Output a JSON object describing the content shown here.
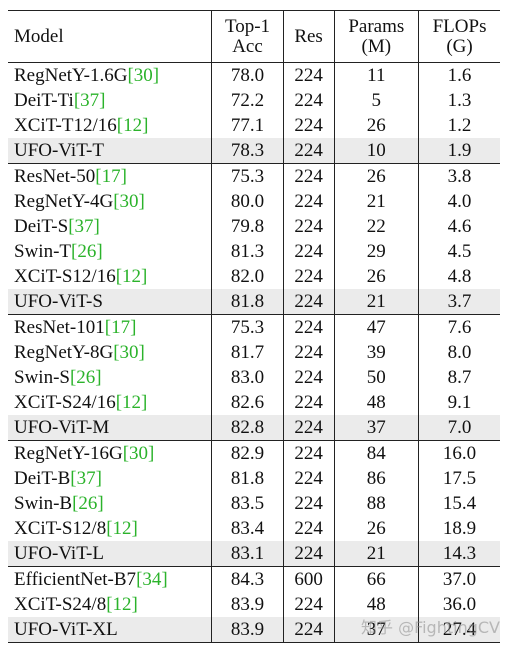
{
  "table": {
    "header": [
      [
        "Model"
      ],
      [
        "Top-1",
        "Acc"
      ],
      [
        "Res"
      ],
      [
        "Params",
        "(M)"
      ],
      [
        "FLOPs",
        "(G)"
      ]
    ],
    "groups": [
      [
        {
          "model": "RegNetY-1.6G",
          "ref": "[30]",
          "cells": [
            "78.0",
            "224",
            "11",
            "1.6"
          ]
        },
        {
          "model": "DeiT-Ti",
          "ref": "[37]",
          "cells": [
            "72.2",
            "224",
            "5",
            "1.3"
          ]
        },
        {
          "model": "XCiT-T12/16",
          "ref": "[12]",
          "cells": [
            "77.1",
            "224",
            "26",
            "1.2"
          ]
        },
        {
          "model": "UFO-ViT-T",
          "cells": [
            "78.3",
            "224",
            "10",
            "1.9"
          ]
        }
      ],
      [
        {
          "model": "ResNet-50",
          "ref": "[17]",
          "cells": [
            "75.3",
            "224",
            "26",
            "3.8"
          ]
        },
        {
          "model": "RegNetY-4G",
          "ref": "[30]",
          "cells": [
            "80.0",
            "224",
            "21",
            "4.0"
          ]
        },
        {
          "model": "DeiT-S",
          "ref": "[37]",
          "cells": [
            "79.8",
            "224",
            "22",
            "4.6"
          ]
        },
        {
          "model": "Swin-T",
          "ref": "[26]",
          "cells": [
            "81.3",
            "224",
            "29",
            "4.5"
          ]
        },
        {
          "model": "XCiT-S12/16",
          "ref": "[12]",
          "cells": [
            "82.0",
            "224",
            "26",
            "4.8"
          ]
        },
        {
          "model": "UFO-ViT-S",
          "cells": [
            "81.8",
            "224",
            "21",
            "3.7"
          ]
        }
      ],
      [
        {
          "model": "ResNet-101",
          "ref": "[17]",
          "cells": [
            "75.3",
            "224",
            "47",
            "7.6"
          ]
        },
        {
          "model": "RegNetY-8G",
          "ref": "[30]",
          "cells": [
            "81.7",
            "224",
            "39",
            "8.0"
          ]
        },
        {
          "model": "Swin-S",
          "ref": "[26]",
          "cells": [
            "83.0",
            "224",
            "50",
            "8.7"
          ]
        },
        {
          "model": "XCiT-S24/16",
          "ref": "[12]",
          "cells": [
            "82.6",
            "224",
            "48",
            "9.1"
          ]
        },
        {
          "model": "UFO-ViT-M",
          "cells": [
            "82.8",
            "224",
            "37",
            "7.0"
          ]
        }
      ],
      [
        {
          "model": "RegNetY-16G",
          "ref": "[30]",
          "cells": [
            "82.9",
            "224",
            "84",
            "16.0"
          ]
        },
        {
          "model": "DeiT-B",
          "ref": "[37]",
          "cells": [
            "81.8",
            "224",
            "86",
            "17.5"
          ]
        },
        {
          "model": "Swin-B",
          "ref": "[26]",
          "cells": [
            "83.5",
            "224",
            "88",
            "15.4"
          ]
        },
        {
          "model": "XCiT-S12/8",
          "ref": "[12]",
          "cells": [
            "83.4",
            "224",
            "26",
            "18.9"
          ]
        },
        {
          "model": "UFO-ViT-L",
          "cells": [
            "83.1",
            "224",
            "21",
            "14.3"
          ]
        }
      ],
      [
        {
          "model": "EfficientNet-B7",
          "ref": "[34]",
          "cells": [
            "84.3",
            "600",
            "66",
            "37.0"
          ]
        },
        {
          "model": "XCiT-S24/8",
          "ref": "[12]",
          "cells": [
            "83.9",
            "224",
            "48",
            "36.0"
          ]
        },
        {
          "model": "UFO-ViT-XL",
          "cells": [
            "83.9",
            "224",
            "37",
            "27.4"
          ]
        }
      ]
    ]
  },
  "watermark": "知乎 @FightingCV"
}
